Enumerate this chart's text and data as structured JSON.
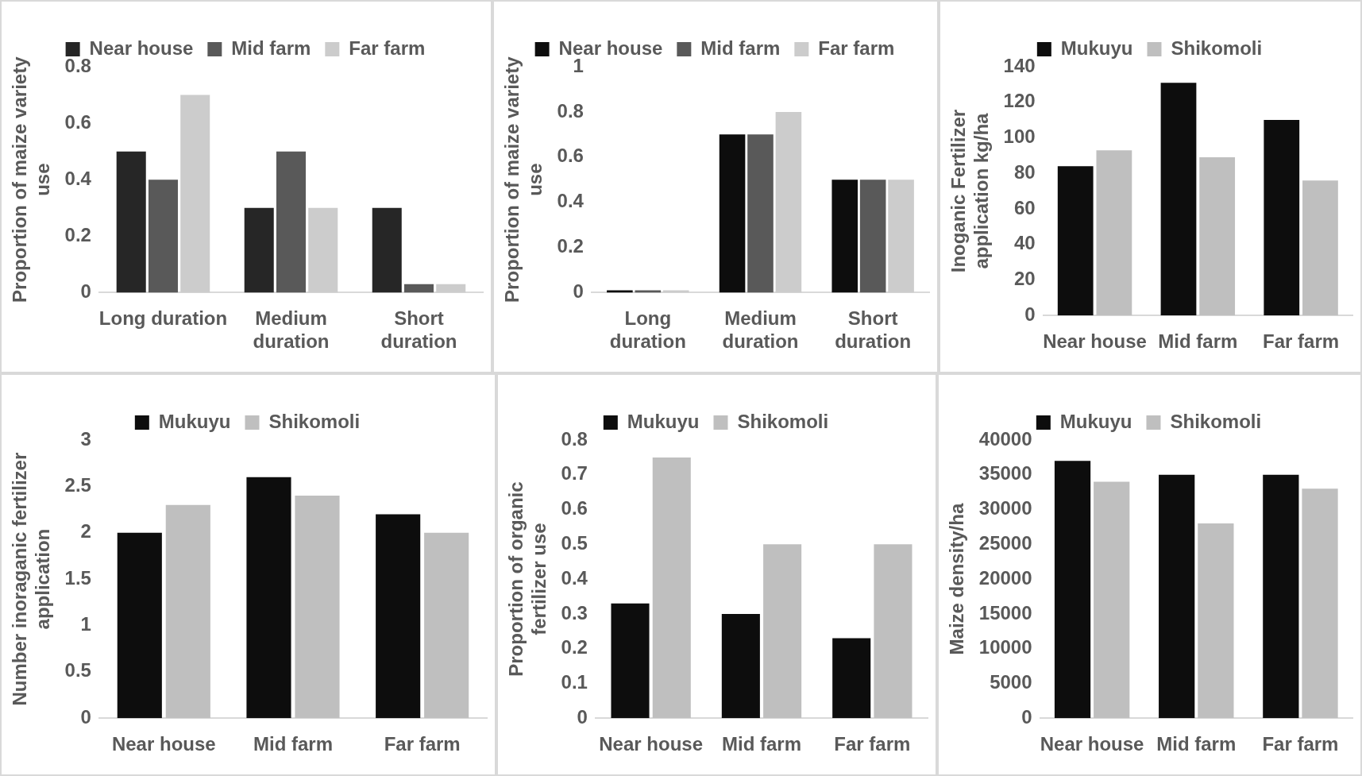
{
  "chart_data": [
    {
      "type": "bar",
      "categories": [
        "Long duration",
        "Medium duration",
        "Short duration"
      ],
      "ylabel": "Proportion of maize variety use",
      "ylim": [
        0,
        0.8
      ],
      "yticks": [
        0,
        0.2,
        0.4,
        0.6,
        0.8
      ],
      "legend": "top",
      "grid": false,
      "series": [
        {
          "name": "Near house",
          "color": "#262626",
          "values": [
            0.5,
            0.3,
            0.3
          ]
        },
        {
          "name": "Mid farm",
          "color": "#595959",
          "values": [
            0.4,
            0.5,
            0.03
          ]
        },
        {
          "name": "Far farm",
          "color": "#cccccc",
          "values": [
            0.7,
            0.3,
            0.03
          ]
        }
      ]
    },
    {
      "type": "bar",
      "categories": [
        "Long duration",
        "Medium duration",
        "Short duration"
      ],
      "ylabel": "Proportion of maize variety use",
      "ylim": [
        0,
        1
      ],
      "yticks": [
        0,
        0.2,
        0.4,
        0.6,
        0.8,
        1
      ],
      "legend": "top",
      "grid": false,
      "series": [
        {
          "name": "Near house",
          "color": "#0d0d0d",
          "values": [
            0.01,
            0.7,
            0.5
          ]
        },
        {
          "name": "Mid farm",
          "color": "#595959",
          "values": [
            0.01,
            0.7,
            0.5
          ]
        },
        {
          "name": "Far farm",
          "color": "#cccccc",
          "values": [
            0.01,
            0.8,
            0.5
          ]
        }
      ]
    },
    {
      "type": "bar",
      "categories": [
        "Near house",
        "Mid farm",
        "Far farm"
      ],
      "ylabel": "Inoganic Fertilizer application kg/ha",
      "ylim": [
        0,
        140
      ],
      "yticks": [
        0,
        20,
        40,
        60,
        80,
        100,
        120,
        140
      ],
      "legend": "top",
      "grid": false,
      "series": [
        {
          "name": "Mukuyu",
          "color": "#0d0d0d",
          "values": [
            84,
            131,
            110
          ]
        },
        {
          "name": "Shikomoli",
          "color": "#bfbfbf",
          "values": [
            93,
            89,
            76
          ]
        }
      ]
    },
    {
      "type": "bar",
      "categories": [
        "Near house",
        "Mid farm",
        "Far farm"
      ],
      "ylabel": "Number inoraganic fertilizer application",
      "ylim": [
        0,
        3
      ],
      "yticks": [
        0,
        0.5,
        1,
        1.5,
        2,
        2.5,
        3
      ],
      "legend": "top",
      "grid": false,
      "series": [
        {
          "name": "Mukuyu",
          "color": "#0d0d0d",
          "values": [
            2,
            2.6,
            2.2
          ]
        },
        {
          "name": "Shikomoli",
          "color": "#bfbfbf",
          "values": [
            2.3,
            2.4,
            2
          ]
        }
      ]
    },
    {
      "type": "bar",
      "categories": [
        "Near house",
        "Mid farm",
        "Far farm"
      ],
      "ylabel": "Proportion of organic fertilizer use",
      "ylim": [
        0,
        0.8
      ],
      "yticks": [
        0,
        0.1,
        0.2,
        0.3,
        0.4,
        0.5,
        0.6,
        0.7,
        0.8
      ],
      "legend": "top",
      "grid": false,
      "series": [
        {
          "name": "Mukuyu",
          "color": "#0d0d0d",
          "values": [
            0.33,
            0.3,
            0.23
          ]
        },
        {
          "name": "Shikomoli",
          "color": "#bfbfbf",
          "values": [
            0.75,
            0.5,
            0.5
          ]
        }
      ]
    },
    {
      "type": "bar",
      "categories": [
        "Near house",
        "Mid farm",
        "Far farm"
      ],
      "ylabel": "Maize density/ha",
      "ylim": [
        0,
        40000
      ],
      "yticks": [
        0,
        5000,
        10000,
        15000,
        20000,
        25000,
        30000,
        35000,
        40000
      ],
      "legend": "top",
      "grid": false,
      "series": [
        {
          "name": "Mukuyu",
          "color": "#0d0d0d",
          "values": [
            37000,
            35000,
            35000
          ]
        },
        {
          "name": "Shikomoli",
          "color": "#bfbfbf",
          "values": [
            34000,
            28000,
            33000
          ]
        }
      ]
    }
  ]
}
